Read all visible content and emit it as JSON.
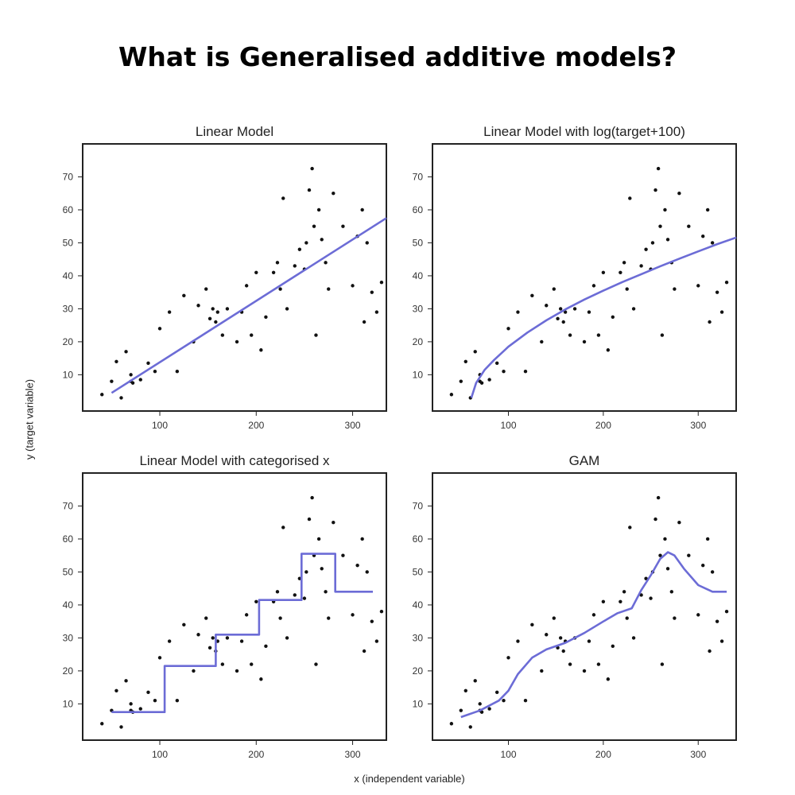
{
  "page_title": "What is Generalised additive models?",
  "ylabel_global": "y (target variable)",
  "xlabel_global": "x (independent variable)",
  "fit_color": "#6c6cd6",
  "point_color": "#111111",
  "chart_data": [
    {
      "type": "scatter",
      "title": "Linear Model",
      "xlim": [
        20,
        335
      ],
      "ylim": [
        -1,
        80
      ],
      "xticks": [
        100,
        200,
        300
      ],
      "yticks": [
        10,
        20,
        30,
        40,
        50,
        60,
        70
      ],
      "fit": {
        "kind": "linear",
        "x": [
          50,
          335
        ],
        "y": [
          4.5,
          57.5
        ]
      }
    },
    {
      "type": "scatter",
      "title": "Linear Model with log(target+100)",
      "xlim": [
        20,
        340
      ],
      "ylim": [
        -1,
        80
      ],
      "xticks": [
        100,
        200,
        300
      ],
      "yticks": [
        10,
        20,
        30,
        40,
        50,
        60,
        70
      ],
      "fit": {
        "kind": "curve",
        "x": [
          61,
          66,
          75,
          85,
          100,
          120,
          140,
          160,
          180,
          200,
          220,
          240,
          260,
          280,
          300,
          320,
          340
        ],
        "y": [
          3,
          7.5,
          11.5,
          14.5,
          18.5,
          22.8,
          26.5,
          29.8,
          32.8,
          35.5,
          38.1,
          40.5,
          42.9,
          45.2,
          47.4,
          49.6,
          51.6
        ]
      }
    },
    {
      "type": "scatter",
      "title": "Linear Model with categorised x",
      "xlim": [
        20,
        335
      ],
      "ylim": [
        -1,
        80
      ],
      "xticks": [
        100,
        200,
        300
      ],
      "yticks": [
        10,
        20,
        30,
        40,
        50,
        60,
        70
      ],
      "fit": {
        "kind": "step",
        "x": [
          50,
          105,
          105,
          158,
          158,
          203,
          203,
          247,
          247,
          282,
          282,
          321
        ],
        "y": [
          7.5,
          7.5,
          21.5,
          21.5,
          31,
          31,
          41.5,
          41.5,
          55.5,
          55.5,
          44,
          44
        ]
      }
    },
    {
      "type": "scatter",
      "title": "GAM",
      "xlim": [
        20,
        340
      ],
      "ylim": [
        -1,
        80
      ],
      "xticks": [
        100,
        200,
        300
      ],
      "yticks": [
        10,
        20,
        30,
        40,
        50,
        60,
        70
      ],
      "fit": {
        "kind": "curve",
        "x": [
          50,
          70,
          90,
          100,
          110,
          125,
          140,
          160,
          180,
          200,
          215,
          230,
          240,
          250,
          260,
          268,
          275,
          285,
          300,
          315,
          330
        ],
        "y": [
          6,
          8,
          11,
          14,
          19,
          24,
          26.5,
          28.5,
          31.5,
          35,
          37.5,
          39,
          44.5,
          49,
          54,
          56,
          55,
          51,
          46,
          44,
          44
        ]
      }
    }
  ],
  "scatter_points": {
    "x": [
      40,
      50,
      55,
      60,
      65,
      70,
      70,
      72,
      80,
      88,
      95,
      100,
      110,
      118,
      125,
      135,
      140,
      148,
      152,
      155,
      158,
      160,
      165,
      170,
      180,
      185,
      190,
      195,
      200,
      205,
      210,
      218,
      222,
      225,
      228,
      232,
      240,
      245,
      250,
      252,
      255,
      258,
      260,
      262,
      265,
      268,
      272,
      275,
      280,
      290,
      300,
      305,
      310,
      312,
      315,
      320,
      325,
      330
    ],
    "y": [
      4,
      8,
      14,
      3,
      17,
      10,
      8,
      7.5,
      8.5,
      13.5,
      11,
      24,
      29,
      11,
      34,
      20,
      31,
      36,
      27,
      30,
      26,
      29,
      22,
      30,
      20,
      29,
      37,
      22,
      41,
      17.5,
      27.5,
      41,
      44,
      36,
      63.5,
      30,
      43,
      48,
      42,
      50,
      66,
      72.5,
      55,
      22,
      60,
      51,
      44,
      36,
      65,
      55,
      37,
      52,
      60,
      26,
      50,
      35,
      29,
      38
    ]
  }
}
